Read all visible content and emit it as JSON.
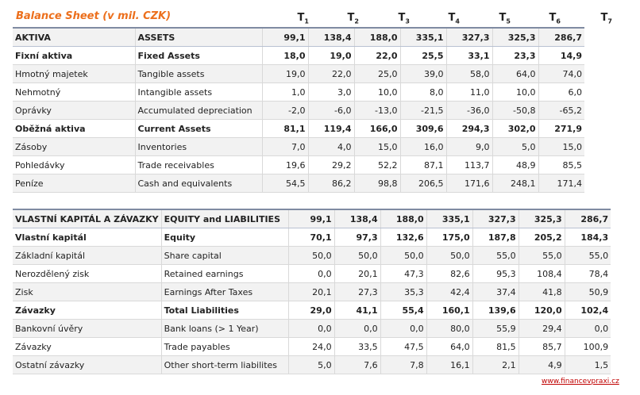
{
  "title": "Balance Sheet (v mil. CZK)",
  "periods": [
    "T",
    "T",
    "T",
    "T",
    "T",
    "T",
    "T"
  ],
  "period_subs": [
    "1",
    "2",
    "3",
    "4",
    "5",
    "6",
    "7"
  ],
  "assets_rows": [
    {
      "cz": "AKTIVA",
      "en": "ASSETS",
      "v": [
        "99,1",
        "138,4",
        "188,0",
        "335,1",
        "327,3",
        "325,3",
        "286,7"
      ]
    },
    {
      "cz": "Fixní aktiva",
      "en": "Fixed Assets",
      "v": [
        "18,0",
        "19,0",
        "22,0",
        "25,5",
        "33,1",
        "23,3",
        "14,9"
      ]
    },
    {
      "cz": "Hmotný majetek",
      "en": "Tangible assets",
      "v": [
        "19,0",
        "22,0",
        "25,0",
        "39,0",
        "58,0",
        "64,0",
        "74,0"
      ]
    },
    {
      "cz": "Nehmotný",
      "en": "Intangible assets",
      "v": [
        "1,0",
        "3,0",
        "10,0",
        "8,0",
        "11,0",
        "10,0",
        "6,0"
      ]
    },
    {
      "cz": "Oprávky",
      "en": "Accumulated depreciation",
      "v": [
        "-2,0",
        "-6,0",
        "-13,0",
        "-21,5",
        "-36,0",
        "-50,8",
        "-65,2"
      ]
    },
    {
      "cz": "Oběžná aktiva",
      "en": "Current Assets",
      "v": [
        "81,1",
        "119,4",
        "166,0",
        "309,6",
        "294,3",
        "302,0",
        "271,9"
      ]
    },
    {
      "cz": "Zásoby",
      "en": "Inventories",
      "v": [
        "7,0",
        "4,0",
        "15,0",
        "16,0",
        "9,0",
        "5,0",
        "15,0"
      ]
    },
    {
      "cz": "Pohledávky",
      "en": "Trade receivables",
      "v": [
        "19,6",
        "29,2",
        "52,2",
        "87,1",
        "113,7",
        "48,9",
        "85,5"
      ]
    },
    {
      "cz": "Peníze",
      "en": "Cash and equivalents",
      "v": [
        "54,5",
        "86,2",
        "98,8",
        "206,5",
        "171,6",
        "248,1",
        "171,4"
      ]
    }
  ],
  "liab_rows": [
    {
      "cz": "VLASTNÍ KAPITÁL A ZÁVAZKY",
      "en": "EQUITY and LIABILITIES",
      "v": [
        "99,1",
        "138,4",
        "188,0",
        "335,1",
        "327,3",
        "325,3",
        "286,7"
      ]
    },
    {
      "cz": "Vlastní kapitál",
      "en": "Equity",
      "v": [
        "70,1",
        "97,3",
        "132,6",
        "175,0",
        "187,8",
        "205,2",
        "184,3"
      ]
    },
    {
      "cz": "Základní kapitál",
      "en": "Share capital",
      "v": [
        "50,0",
        "50,0",
        "50,0",
        "50,0",
        "55,0",
        "55,0",
        "55,0"
      ]
    },
    {
      "cz": "Nerozdělený zisk",
      "en": "Retained earnings",
      "v": [
        "0,0",
        "20,1",
        "47,3",
        "82,6",
        "95,3",
        "108,4",
        "78,4"
      ]
    },
    {
      "cz": "Zisk",
      "en": "Earnings After Taxes",
      "v": [
        "20,1",
        "27,3",
        "35,3",
        "42,4",
        "37,4",
        "41,8",
        "50,9"
      ]
    },
    {
      "cz": "Závazky",
      "en": "Total Liabilities",
      "v": [
        "29,0",
        "41,1",
        "55,4",
        "160,1",
        "139,6",
        "120,0",
        "102,4"
      ]
    },
    {
      "cz": "Bankovní úvěry",
      "en": "Bank loans (> 1 Year)",
      "v": [
        "0,0",
        "0,0",
        "0,0",
        "80,0",
        "55,9",
        "29,4",
        "0,0"
      ]
    },
    {
      "cz": "Závazky",
      "en": "Trade payables",
      "v": [
        "24,0",
        "33,5",
        "47,5",
        "64,0",
        "81,5",
        "85,7",
        "100,9"
      ]
    },
    {
      "cz": "Ostatní závazky",
      "en": "Other short-term liabilites",
      "v": [
        "5,0",
        "7,6",
        "7,8",
        "16,1",
        "2,1",
        "4,9",
        "1,5"
      ]
    }
  ],
  "source_link": "www.financevpraxi.cz"
}
